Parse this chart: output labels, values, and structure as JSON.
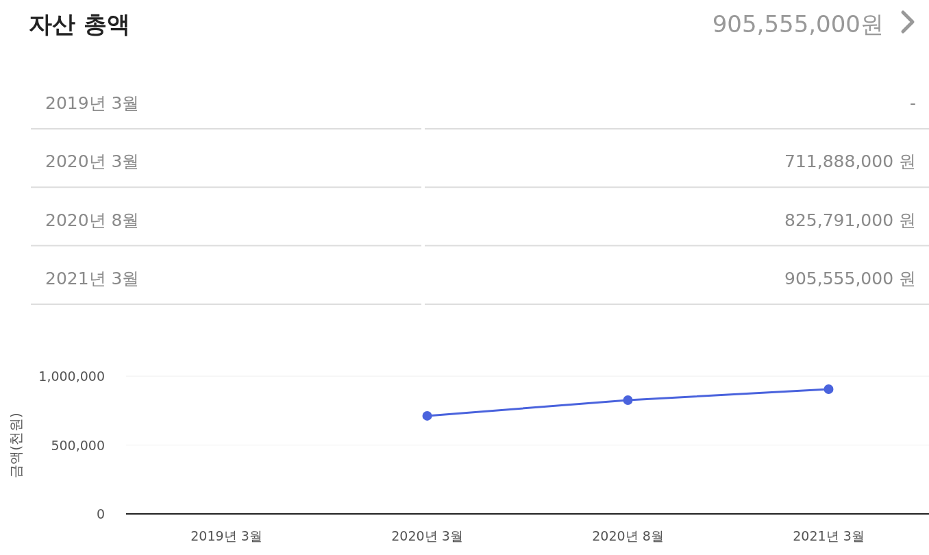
{
  "chart_data": {
    "type": "line",
    "title": "자산 총액",
    "annotations": [
      "905,555,000원"
    ],
    "ylabel": "금액(천원)",
    "categories": [
      "2019년 3월",
      "2020년 3월",
      "2020년 8월",
      "2021년 3월"
    ],
    "series": [
      {
        "color": "#4a63dd",
        "values": [
          null,
          711888,
          825791,
          905555
        ]
      }
    ],
    "value_labels": [
      "-",
      "711,888,000 원",
      "825,791,000 원",
      "905,555,000 원"
    ],
    "ylim": [
      0,
      1000000
    ],
    "yticks": [
      {
        "value": 0,
        "label": "0"
      },
      {
        "value": 500000,
        "label": "500,000"
      },
      {
        "value": 1000000,
        "label": "1,000,000"
      }
    ],
    "grid": "y",
    "marker": "circle",
    "line_style": "solid"
  }
}
